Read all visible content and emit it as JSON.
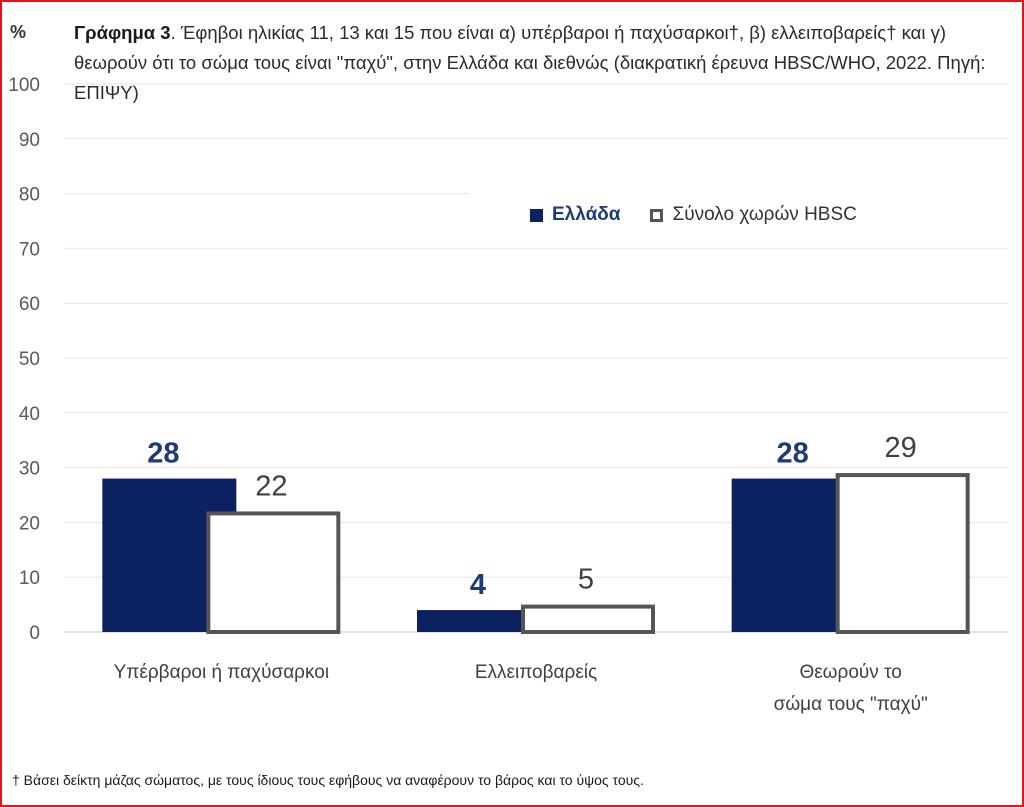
{
  "chart_data": {
    "type": "bar",
    "title_bold": "Γράφημα 3",
    "title_rest": ". Έφηβοι ηλικίας 11, 13 και 15 που είναι α) υπέρβαροι ή παχύσαρκοι†, β) ελλειποβαρείς† και γ) θεωρούν ότι το σώμα τους είναι \"παχύ\", στην Ελλάδα και διεθνώς (διακρατική έρευνα HBSC/WHO, 2022. Πηγή: ΕΠΙΨΥ)",
    "ylabel": "%",
    "ylim": [
      0,
      100
    ],
    "yticks": [
      0,
      10,
      20,
      30,
      40,
      50,
      60,
      70,
      80,
      90,
      100
    ],
    "categories": [
      [
        "Υπέρβαροι ή παχύσαρκοι"
      ],
      [
        "Ελλειποβαρείς"
      ],
      [
        "Θεωρούν το",
        "σώμα τους \"παχύ\""
      ]
    ],
    "series": [
      {
        "name": "Ελλάδα",
        "values": [
          28,
          4,
          28
        ],
        "color": "#0b2160"
      },
      {
        "name": "Σύνολο χωρών HBSC",
        "values": [
          22,
          5,
          29
        ],
        "color": "#ffffff",
        "edge": "#555555"
      }
    ],
    "legend_position": "top-right",
    "grid": true
  },
  "footnote": "† Βάσει δείκτη μάζας σώματος, με τους ίδιους τους εφήβους να αναφέρουν το βάρος και το ύψος τους."
}
